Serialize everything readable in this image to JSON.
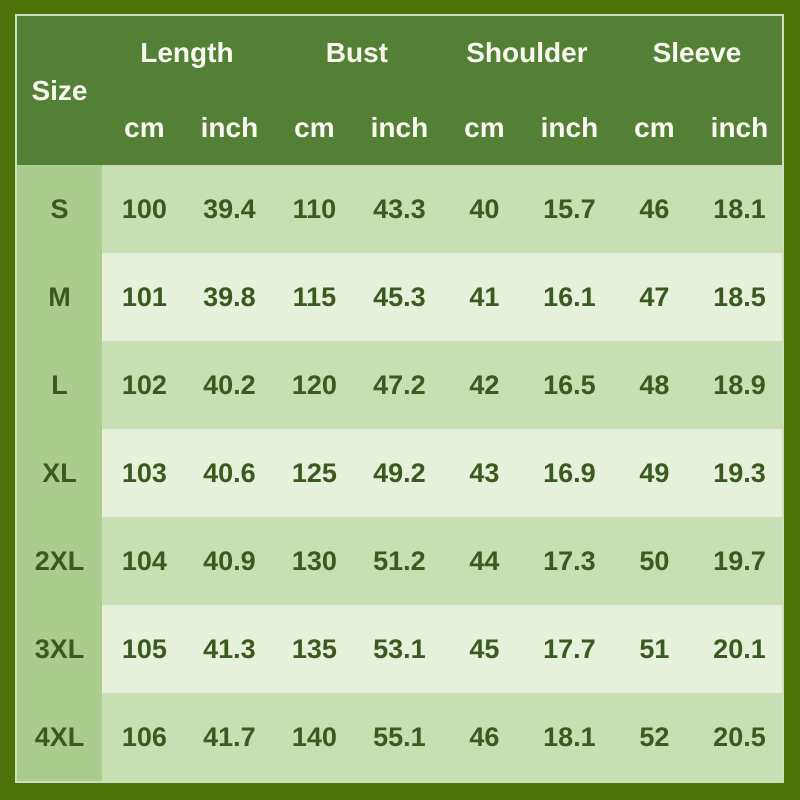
{
  "colors": {
    "outer_border": "#4c7408",
    "header_background": "#538035",
    "header_text": "#f7f9f1",
    "size_column_background": "#a9cd8e",
    "row_medium_background": "#c7dfb3",
    "row_light_background": "#e6f0da",
    "cell_text": "#3a5a20",
    "table_outline": "#eef3e6"
  },
  "chart_data": {
    "type": "table",
    "size_column_header": "Size",
    "group_headers": [
      "Length",
      "Bust",
      "Shoulder",
      "Sleeve"
    ],
    "unit_headers": [
      "cm",
      "inch",
      "cm",
      "inch",
      "cm",
      "inch",
      "cm",
      "inch"
    ],
    "row_labels": [
      "S",
      "M",
      "L",
      "XL",
      "2XL",
      "3XL",
      "4XL"
    ],
    "rows": [
      [
        100,
        39.4,
        110,
        43.3,
        40,
        15.7,
        46,
        18.1
      ],
      [
        101,
        39.8,
        115,
        45.3,
        41,
        16.1,
        47,
        18.5
      ],
      [
        102,
        40.2,
        120,
        47.2,
        42,
        16.5,
        48,
        18.9
      ],
      [
        103,
        40.6,
        125,
        49.2,
        43,
        16.9,
        49,
        19.3
      ],
      [
        104,
        40.9,
        130,
        51.2,
        44,
        17.3,
        50,
        19.7
      ],
      [
        105,
        41.3,
        135,
        53.1,
        45,
        17.7,
        51,
        20.1
      ],
      [
        106,
        41.7,
        140,
        55.1,
        46,
        18.1,
        52,
        20.5
      ]
    ]
  }
}
